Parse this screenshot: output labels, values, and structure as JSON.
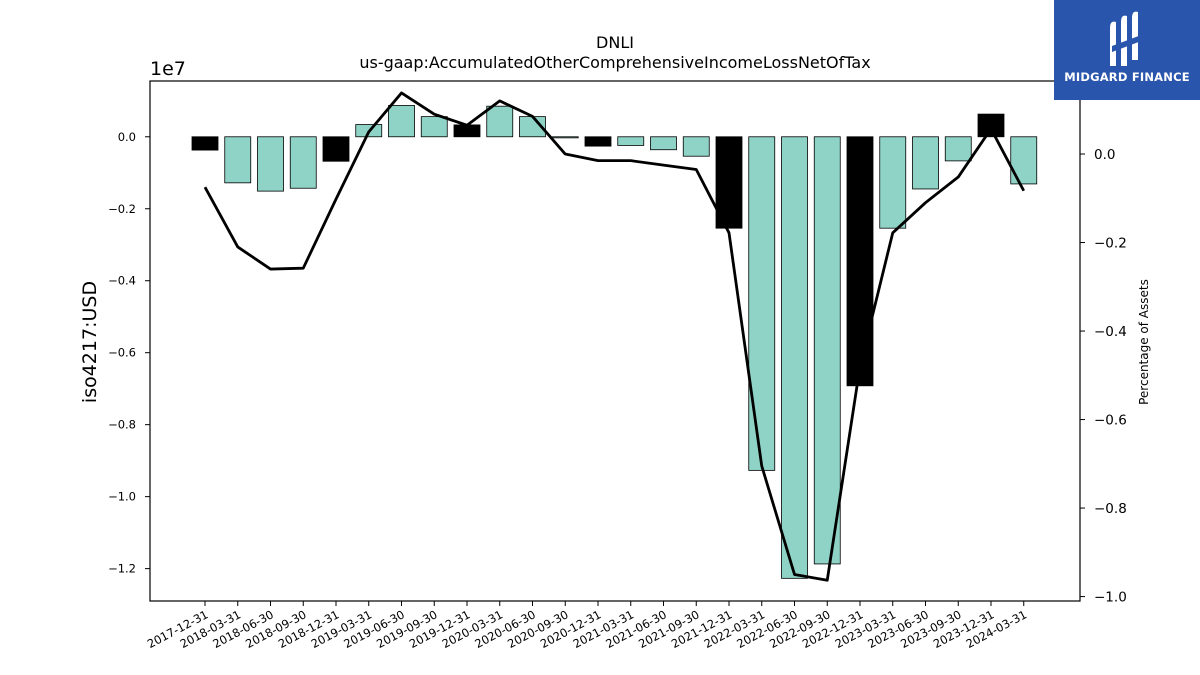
{
  "chart_data": {
    "type": "bar+line",
    "title": "DNLI",
    "subtitle": "us-gaap:AccumulatedOtherComprehensiveIncomeLossNetOfTax",
    "ylabel": "iso4217:USD",
    "y_offset_label": "1e7",
    "y2label": "Percentage of Assets",
    "ylim": [
      -1.29,
      0.155
    ],
    "y2lim": [
      -1.01,
      0.165
    ],
    "yticks": [
      "0.0",
      "−0.2",
      "−0.4",
      "−0.6",
      "−0.8",
      "−1.0",
      "−1.2"
    ],
    "ytick_values": [
      0.0,
      -0.2,
      -0.4,
      -0.6,
      -0.8,
      -1.0,
      -1.2
    ],
    "y2ticks": [
      "0.0",
      "−0.2",
      "−0.4",
      "−0.6",
      "−0.8",
      "−1.0"
    ],
    "y2tick_values": [
      0.0,
      -0.2,
      -0.4,
      -0.6,
      -0.8,
      -1.0
    ],
    "categories": [
      "2017-12-31",
      "2018-03-31",
      "2018-06-30",
      "2018-09-30",
      "2018-12-31",
      "2019-03-31",
      "2019-06-30",
      "2019-09-30",
      "2019-12-31",
      "2020-03-31",
      "2020-06-30",
      "2020-09-30",
      "2020-12-31",
      "2021-03-31",
      "2021-06-30",
      "2021-09-30",
      "2021-12-31",
      "2022-03-31",
      "2022-06-30",
      "2022-09-30",
      "2022-12-31",
      "2023-03-31",
      "2023-06-30",
      "2023-09-30",
      "2023-12-31",
      "2024-03-31"
    ],
    "bar_values": [
      -0.037,
      -0.128,
      -0.151,
      -0.143,
      -0.068,
      0.034,
      0.087,
      0.056,
      0.033,
      0.085,
      0.056,
      -0.003,
      -0.026,
      -0.024,
      -0.036,
      -0.054,
      -0.254,
      -0.927,
      -1.227,
      -1.187,
      -0.692,
      -0.254,
      -0.145,
      -0.067,
      0.063,
      -0.131
    ],
    "bar_colors": [
      "#000000",
      "#8fd3c7",
      "#8fd3c7",
      "#8fd3c7",
      "#000000",
      "#8fd3c7",
      "#8fd3c7",
      "#8fd3c7",
      "#000000",
      "#8fd3c7",
      "#8fd3c7",
      "#8fd3c7",
      "#000000",
      "#8fd3c7",
      "#8fd3c7",
      "#8fd3c7",
      "#000000",
      "#8fd3c7",
      "#8fd3c7",
      "#8fd3c7",
      "#000000",
      "#8fd3c7",
      "#8fd3c7",
      "#8fd3c7",
      "#000000",
      "#8fd3c7"
    ],
    "line_values": [
      -0.075,
      -0.21,
      -0.26,
      -0.258,
      -0.102,
      0.05,
      0.138,
      0.09,
      0.065,
      0.12,
      0.085,
      0.0,
      -0.015,
      -0.015,
      -0.025,
      -0.035,
      -0.178,
      -0.705,
      -0.95,
      -0.963,
      -0.48,
      -0.178,
      -0.11,
      -0.052,
      0.057,
      -0.083
    ],
    "line_color": "#000000",
    "grid": false
  },
  "logo": {
    "text": "MIDGARD FINANCE",
    "bg_color": "#2a55ad"
  }
}
